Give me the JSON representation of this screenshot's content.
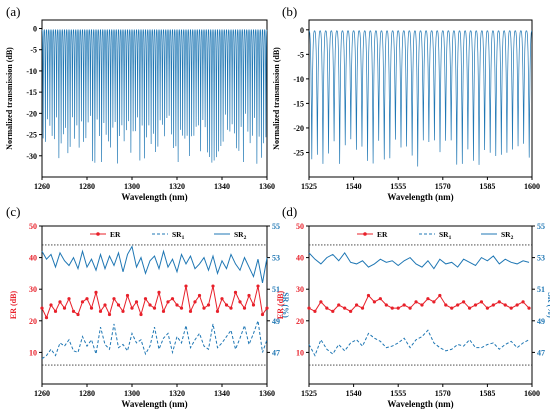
{
  "colors": {
    "blue": "#1f77b4",
    "red": "#e8202a",
    "black": "#000000",
    "ref": "#333333"
  },
  "panels": {
    "a": {
      "label": "(a)"
    },
    "b": {
      "label": "(b)"
    },
    "c": {
      "label": "(c)"
    },
    "d": {
      "label": "(d)"
    }
  },
  "chart_data": [
    {
      "id": "a",
      "type": "line",
      "xlabel": "Wavelength (nm)",
      "ylabel": "Normalized transmission (dB)",
      "xlim": [
        1260,
        1360
      ],
      "ylim": [
        -35,
        2
      ],
      "xticks": [
        1260,
        1280,
        1300,
        1320,
        1340,
        1360
      ],
      "yticks": [
        0,
        -5,
        -10,
        -15,
        -20,
        -25,
        -30
      ],
      "spectrum": {
        "baseline": -0.3,
        "dips": 100,
        "dip_depth_min": -20,
        "dip_depth_max": -32
      }
    },
    {
      "id": "b",
      "type": "line",
      "xlabel": "Wavelength (nm)",
      "ylabel": "Normalized transmission (dB)",
      "xlim": [
        1525,
        1600
      ],
      "ylim": [
        -30,
        2
      ],
      "xticks": [
        1525,
        1540,
        1555,
        1570,
        1585,
        1600
      ],
      "yticks": [
        0,
        -5,
        -10,
        -15,
        -20,
        -25
      ],
      "spectrum": {
        "baseline": -0.2,
        "dips": 40,
        "dip_depth_min": -22,
        "dip_depth_max": -28
      }
    },
    {
      "id": "c",
      "type": "line",
      "xlabel": "Wavelength (nm)",
      "ylabel_left": "ER (dB)",
      "ylabel_right": "SR (%)",
      "xlim": [
        1260,
        1360
      ],
      "ylim_left": [
        0,
        50
      ],
      "ylim_right": [
        45,
        55
      ],
      "xticks": [
        1260,
        1280,
        1300,
        1320,
        1340,
        1360
      ],
      "yticks_left": [
        10,
        20,
        30,
        40,
        50
      ],
      "yticks_right": [
        47,
        49,
        51,
        53,
        55
      ],
      "ref_lines_left": [
        44,
        6
      ],
      "legend": [
        {
          "key": "ER",
          "label": "ER",
          "style": "red-marker"
        },
        {
          "key": "SR1",
          "label": "SR",
          "sub": "1",
          "style": "blue-dashed"
        },
        {
          "key": "SR2",
          "label": "SR",
          "sub": "2",
          "style": "blue-solid"
        }
      ],
      "x": [
        1260,
        1262,
        1264,
        1266,
        1268,
        1270,
        1272,
        1274,
        1276,
        1278,
        1280,
        1282,
        1284,
        1286,
        1288,
        1290,
        1292,
        1294,
        1296,
        1298,
        1300,
        1302,
        1304,
        1306,
        1308,
        1310,
        1312,
        1314,
        1316,
        1318,
        1320,
        1322,
        1324,
        1326,
        1328,
        1330,
        1332,
        1334,
        1336,
        1338,
        1340,
        1342,
        1344,
        1346,
        1348,
        1350,
        1352,
        1354,
        1356,
        1358,
        1360
      ],
      "series": [
        {
          "name": "ER",
          "axis": "left",
          "values": [
            24,
            21,
            25,
            23,
            26,
            24,
            27,
            23,
            22,
            26,
            27,
            24,
            29,
            23,
            25,
            22,
            27,
            25,
            23,
            28,
            24,
            26,
            22,
            27,
            25,
            24,
            29,
            23,
            26,
            27,
            25,
            24,
            31,
            23,
            26,
            28,
            24,
            25,
            31,
            23,
            27,
            25,
            24,
            29,
            26,
            24,
            28,
            25,
            31,
            22,
            24
          ]
        },
        {
          "name": "SR1",
          "axis": "right",
          "values": [
            46.6,
            46.8,
            47.2,
            46.8,
            47.6,
            47.4,
            47.8,
            47.1,
            47.0,
            48.0,
            47.4,
            47.8,
            46.9,
            48.6,
            47.5,
            47.2,
            48.8,
            47.3,
            47.5,
            47.1,
            48.2,
            47.6,
            47.8,
            46.9,
            47.4,
            48.6,
            47.2,
            47.9,
            48.2,
            47.0,
            48.0,
            47.6,
            48.7,
            47.3,
            47.8,
            48.2,
            47.4,
            47.2,
            48.8,
            47.3,
            47.6,
            48.0,
            48.4,
            47.2,
            47.9,
            48.7,
            47.5,
            48.2,
            49.0,
            47.0,
            47.8
          ]
        },
        {
          "name": "SR2",
          "axis": "right",
          "values": [
            53.4,
            52.9,
            53.2,
            52.4,
            53.3,
            52.8,
            52.5,
            53.0,
            52.3,
            53.4,
            52.4,
            52.9,
            52.2,
            53.2,
            52.3,
            53.1,
            52.5,
            53.3,
            52.1,
            53.2,
            53.7,
            52.4,
            53.0,
            52.0,
            52.8,
            53.1,
            52.3,
            53.4,
            52.4,
            52.9,
            52.1,
            53.2,
            52.6,
            53.1,
            52.3,
            52.6,
            53.0,
            52.2,
            53.1,
            52.0,
            52.8,
            52.3,
            53.2,
            52.6,
            52.2,
            53.0,
            52.4,
            51.8,
            52.9,
            51.4,
            53.0
          ]
        }
      ]
    },
    {
      "id": "d",
      "type": "line",
      "xlabel": "Wavelength (nm)",
      "ylabel_left": "ER (dB)",
      "ylabel_right": "SR (%)",
      "xlim": [
        1525,
        1600
      ],
      "ylim_left": [
        0,
        50
      ],
      "ylim_right": [
        45,
        55
      ],
      "xticks": [
        1525,
        1540,
        1555,
        1570,
        1585,
        1600
      ],
      "yticks_left": [
        10,
        20,
        30,
        40,
        50
      ],
      "yticks_right": [
        47,
        49,
        51,
        53,
        55
      ],
      "ref_lines_left": [
        44,
        6
      ],
      "legend": [
        {
          "key": "ER",
          "label": "ER",
          "style": "red-marker"
        },
        {
          "key": "SR1",
          "label": "SR",
          "sub": "1",
          "style": "blue-dashed"
        },
        {
          "key": "SR2",
          "label": "SR",
          "sub": "2",
          "style": "blue-solid"
        }
      ],
      "x": [
        1525,
        1527,
        1529,
        1531,
        1533,
        1535,
        1537,
        1539,
        1541,
        1543,
        1545,
        1547,
        1549,
        1551,
        1553,
        1555,
        1557,
        1559,
        1561,
        1563,
        1565,
        1567,
        1569,
        1571,
        1573,
        1575,
        1577,
        1579,
        1581,
        1583,
        1585,
        1587,
        1589,
        1591,
        1593,
        1595,
        1597,
        1599
      ],
      "series": [
        {
          "name": "ER",
          "axis": "left",
          "values": [
            24,
            23,
            26,
            24,
            23,
            25,
            24,
            23,
            25,
            24,
            28,
            26,
            27,
            25,
            24,
            24,
            25,
            24,
            26,
            25,
            27,
            26,
            28,
            25,
            24,
            25,
            26,
            24,
            25,
            26,
            24,
            25,
            26,
            25,
            24,
            25,
            26,
            24
          ]
        },
        {
          "name": "SR1",
          "axis": "right",
          "values": [
            47.5,
            46.8,
            47.8,
            47.2,
            46.9,
            47.5,
            47.1,
            47.6,
            47.8,
            47.4,
            48.2,
            47.9,
            47.7,
            47.3,
            47.4,
            47.6,
            47.9,
            47.3,
            47.8,
            48.0,
            48.4,
            47.6,
            47.3,
            47.1,
            47.2,
            47.5,
            47.4,
            47.8,
            47.3,
            47.3,
            47.5,
            47.6,
            47.2,
            47.5,
            47.7,
            47.3,
            47.6,
            47.8
          ]
        },
        {
          "name": "SR2",
          "axis": "right",
          "values": [
            53.3,
            52.9,
            52.6,
            53.0,
            53.2,
            52.8,
            53.3,
            52.7,
            52.6,
            52.8,
            52.4,
            52.6,
            52.9,
            52.7,
            52.8,
            52.5,
            52.8,
            53.0,
            52.6,
            52.4,
            52.8,
            52.3,
            52.9,
            52.6,
            52.7,
            52.4,
            52.9,
            52.7,
            52.5,
            53.0,
            52.8,
            53.1,
            52.6,
            52.9,
            52.7,
            52.6,
            52.8,
            52.7
          ]
        }
      ]
    }
  ]
}
